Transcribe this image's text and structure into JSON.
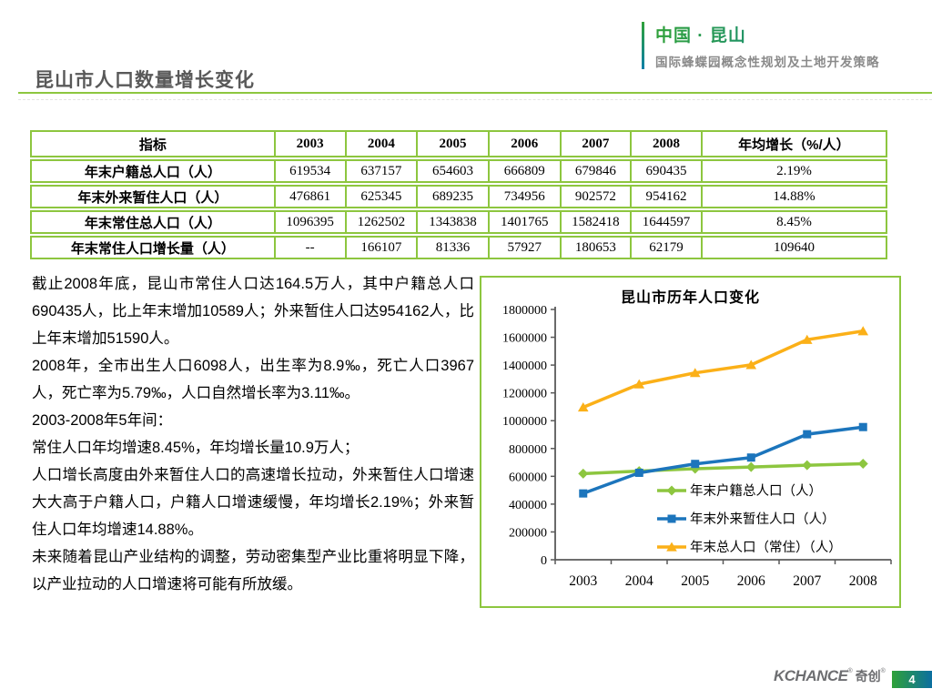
{
  "header": {
    "brand_title": "中国 · 昆山",
    "brand_subtitle": "国际蜂蝶园概念性规划及土地开发策略",
    "page_title": "昆山市人口数量增长变化"
  },
  "table": {
    "headers": [
      "指标",
      "2003",
      "2004",
      "2005",
      "2006",
      "2007",
      "2008",
      "年均增长（%/人）"
    ],
    "rows": [
      [
        "年末户籍总人口（人）",
        "619534",
        "637157",
        "654603",
        "666809",
        "679846",
        "690435",
        "2.19%"
      ],
      [
        "年末外来暂住人口（人）",
        "476861",
        "625345",
        "689235",
        "734956",
        "902572",
        "954162",
        "14.88%"
      ],
      [
        "年末常住总人口（人）",
        "1096395",
        "1262502",
        "1343838",
        "1401765",
        "1582418",
        "1644597",
        "8.45%"
      ],
      [
        "年末常住人口增长量（人）",
        "--",
        "166107",
        "81336",
        "57927",
        "180653",
        "62179",
        "109640"
      ]
    ]
  },
  "analysis": {
    "paragraphs": [
      "截止2008年底，昆山市常住人口达164.5万人，其中户籍总人口 690435人，比上年末增加10589人；外来暂住人口达954162人，比上年末增加51590人。",
      "2008年，全市出生人口6098人，出生率为8.9‰，死亡人口3967人，死亡率为5.79‰，人口自然增长率为3.11‰。",
      "2003-2008年5年间：",
      "常住人口年均增速8.45%，年均增长量10.9万人；",
      "人口增长高度由外来暂住人口的高速增长拉动，外来暂住人口增速大大高于户籍人口，户籍人口增速缓慢，年均增长2.19%；外来暂住人口年均增速14.88%。",
      "未来随着昆山产业结构的调整，劳动密集型产业比重将明显下降，以产业拉动的人口增速将可能有所放缓。"
    ]
  },
  "chart_data": {
    "type": "line",
    "title": "昆山市历年人口变化",
    "categories": [
      "2003",
      "2004",
      "2005",
      "2006",
      "2007",
      "2008"
    ],
    "series": [
      {
        "name": "年末户籍总人口（人）",
        "marker": "diamond",
        "color": "#8dc63f",
        "values": [
          619534,
          637157,
          654603,
          666809,
          679846,
          690435
        ]
      },
      {
        "name": "年末外来暂住人口（人）",
        "marker": "square",
        "color": "#1c75bc",
        "values": [
          476861,
          625345,
          689235,
          734956,
          902572,
          954162
        ]
      },
      {
        "name": "年末总人口（常住）（人）",
        "marker": "triangle",
        "color": "#fbb018",
        "values": [
          1096395,
          1262502,
          1343838,
          1401765,
          1582418,
          1644597
        ]
      }
    ],
    "xlabel": "",
    "ylabel": "",
    "ylim": [
      0,
      1800000
    ],
    "ytick_step": 200000,
    "grid": false,
    "legend_position": "inside-bottom-right"
  },
  "footer": {
    "logo_en": "KCHANCE",
    "logo_cn": "奇创",
    "reg": "®",
    "page_number": "4"
  },
  "colors": {
    "accent_green": "#8dc63f",
    "brand_gradient_start": "#2fa139",
    "brand_gradient_end": "#0c7fa8",
    "title_gray": "#595959",
    "axis_gray": "#595959"
  }
}
